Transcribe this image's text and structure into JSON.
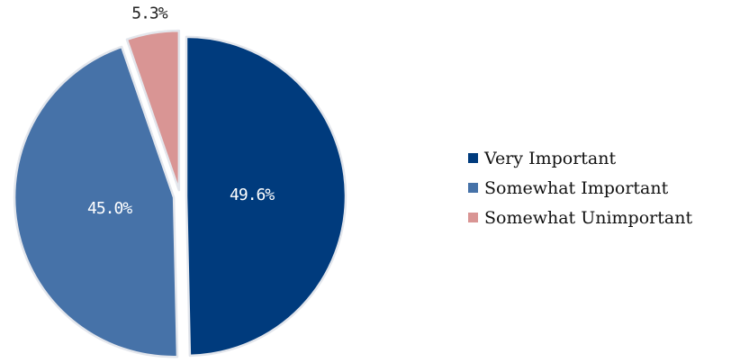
{
  "chart_data": {
    "type": "pie",
    "title": "",
    "labels": [
      "Very Important",
      "Somewhat Important",
      "Somewhat Unimportant"
    ],
    "values": [
      49.6,
      45.0,
      5.3
    ],
    "display_labels": [
      "49.6%",
      "45.0%",
      "5.3%"
    ],
    "colors": [
      "#003b7d",
      "#4672a8",
      "#d99594"
    ],
    "label_colors": [
      "#ffffff",
      "#ffffff",
      "#222222"
    ],
    "exploded": true,
    "legend_position": "right"
  }
}
